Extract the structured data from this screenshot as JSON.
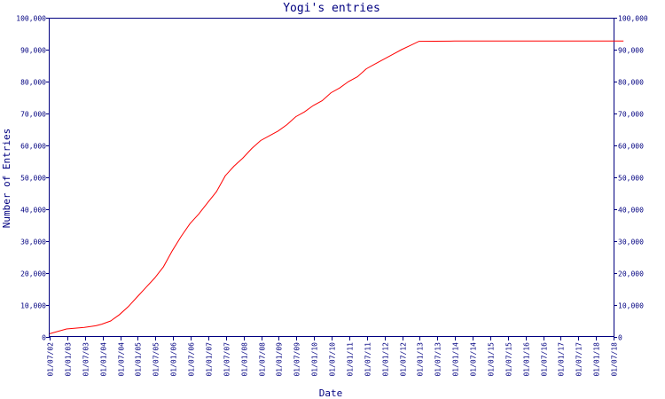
{
  "chart_data": {
    "type": "line",
    "title": "Yogi's entries",
    "xlabel": "Date",
    "ylabel": "Number of Entries",
    "xlim": [
      "2002-01-07",
      "2018-01-07"
    ],
    "ylim": [
      0,
      100000
    ],
    "grid": false,
    "x_tick_labels": [
      "01/07/02",
      "01/01/03",
      "01/07/03",
      "01/01/04",
      "01/07/04",
      "01/01/05",
      "01/07/05",
      "01/01/06",
      "01/07/06",
      "01/01/07",
      "01/07/07",
      "01/01/08",
      "01/07/08",
      "01/01/09",
      "01/07/09",
      "01/01/10",
      "01/07/10",
      "01/01/11",
      "01/07/11",
      "01/01/12",
      "01/07/12",
      "01/01/13",
      "01/07/13",
      "01/01/14",
      "01/07/14",
      "01/01/15",
      "01/07/15",
      "01/01/16",
      "01/07/16",
      "01/01/17",
      "01/07/17",
      "01/01/18",
      "01/07/18"
    ],
    "y_tick_labels": [
      "0",
      "10,000",
      "20,000",
      "30,000",
      "40,000",
      "50,000",
      "60,000",
      "70,000",
      "80,000",
      "90,000",
      "100,000"
    ],
    "series": [
      {
        "color": "#ff0000",
        "points": [
          [
            "2002-01-07",
            1000
          ],
          [
            "2002-07-01",
            2500
          ],
          [
            "2003-01-01",
            3000
          ],
          [
            "2003-05-01",
            3500
          ],
          [
            "2003-07-01",
            4000
          ],
          [
            "2003-10-01",
            5000
          ],
          [
            "2004-01-01",
            7000
          ],
          [
            "2004-04-01",
            9500
          ],
          [
            "2004-07-01",
            12500
          ],
          [
            "2004-10-01",
            15500
          ],
          [
            "2005-01-01",
            18500
          ],
          [
            "2005-04-01",
            22000
          ],
          [
            "2005-07-01",
            27000
          ],
          [
            "2005-10-01",
            31500
          ],
          [
            "2006-01-01",
            35500
          ],
          [
            "2006-04-01",
            38500
          ],
          [
            "2006-07-01",
            42000
          ],
          [
            "2006-10-01",
            45500
          ],
          [
            "2007-01-01",
            50500
          ],
          [
            "2007-04-01",
            53500
          ],
          [
            "2007-07-01",
            56000
          ],
          [
            "2007-10-01",
            59000
          ],
          [
            "2008-01-01",
            61500
          ],
          [
            "2008-04-01",
            63000
          ],
          [
            "2008-07-01",
            64500
          ],
          [
            "2008-10-01",
            66500
          ],
          [
            "2009-01-01",
            69000
          ],
          [
            "2009-04-01",
            70500
          ],
          [
            "2009-07-01",
            72500
          ],
          [
            "2009-10-01",
            74000
          ],
          [
            "2010-01-01",
            76500
          ],
          [
            "2010-04-01",
            78000
          ],
          [
            "2010-07-01",
            80000
          ],
          [
            "2010-10-01",
            81500
          ],
          [
            "2011-01-01",
            84000
          ],
          [
            "2011-04-01",
            85500
          ],
          [
            "2011-07-01",
            87000
          ],
          [
            "2011-10-01",
            88500
          ],
          [
            "2012-01-01",
            90000
          ],
          [
            "2012-04-01",
            91300
          ],
          [
            "2012-07-01",
            92600
          ],
          [
            "2013-07-01",
            92700
          ],
          [
            "2015-07-01",
            92700
          ],
          [
            "2017-07-01",
            92700
          ],
          [
            "2018-04-20",
            92700
          ]
        ]
      }
    ]
  }
}
